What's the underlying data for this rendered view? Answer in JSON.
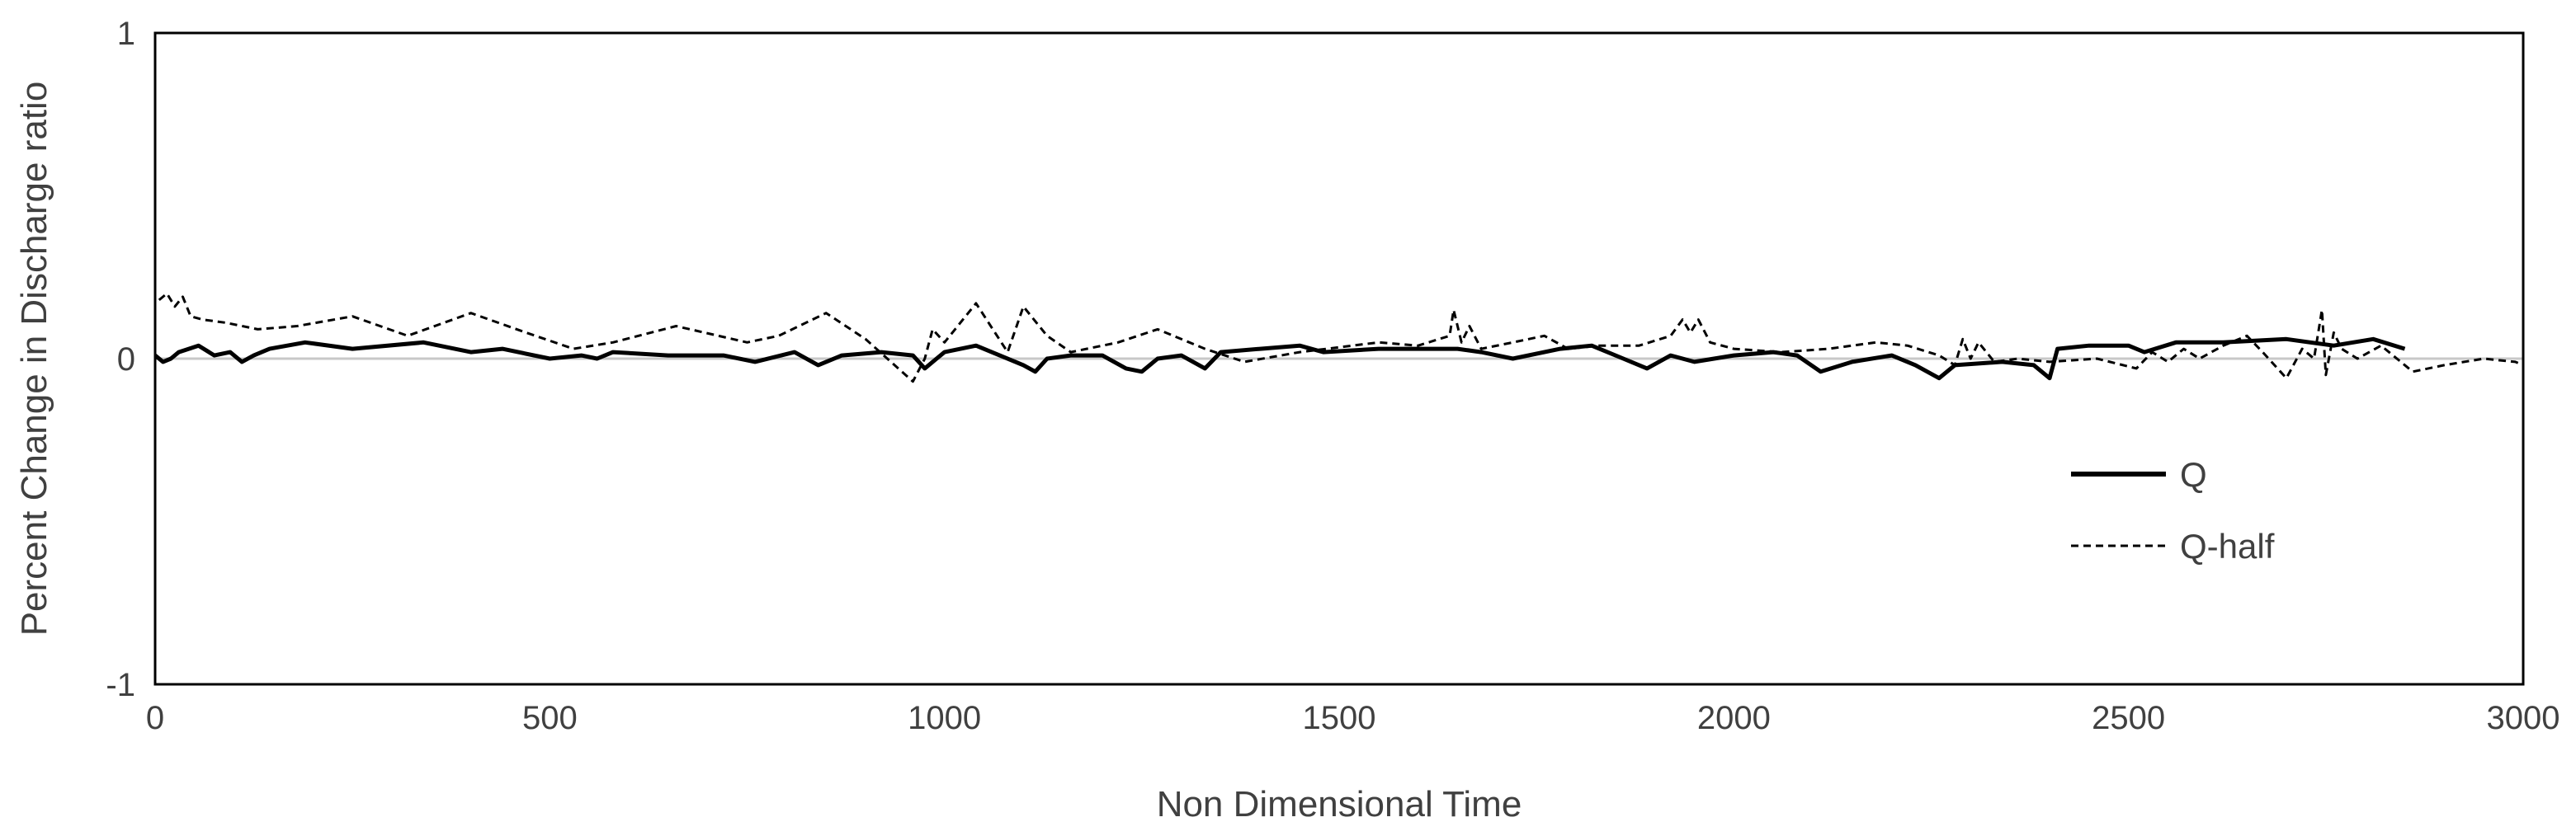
{
  "chart_data": {
    "type": "line",
    "title": "",
    "xlabel": "Non Dimensional Time",
    "ylabel": "Percent Change in Discharge ratio",
    "xlim": [
      0,
      3000
    ],
    "ylim": [
      -1,
      1
    ],
    "xticks": [
      0,
      500,
      1000,
      1500,
      2000,
      2500,
      3000
    ],
    "yticks": [
      -1,
      0,
      1
    ],
    "grid": false,
    "zero_line": true,
    "legend_position": "right",
    "series": [
      {
        "name": "Q",
        "style": "solid",
        "color": "#000000",
        "points": [
          [
            0,
            0.01
          ],
          [
            10,
            -0.01
          ],
          [
            20,
            0.0
          ],
          [
            30,
            0.02
          ],
          [
            55,
            0.04
          ],
          [
            75,
            0.01
          ],
          [
            95,
            0.02
          ],
          [
            110,
            -0.01
          ],
          [
            125,
            0.01
          ],
          [
            145,
            0.03
          ],
          [
            190,
            0.05
          ],
          [
            250,
            0.03
          ],
          [
            340,
            0.05
          ],
          [
            400,
            0.02
          ],
          [
            440,
            0.03
          ],
          [
            500,
            0.0
          ],
          [
            540,
            0.01
          ],
          [
            560,
            0.0
          ],
          [
            580,
            0.02
          ],
          [
            650,
            0.01
          ],
          [
            720,
            0.01
          ],
          [
            760,
            -0.01
          ],
          [
            810,
            0.02
          ],
          [
            840,
            -0.02
          ],
          [
            870,
            0.01
          ],
          [
            920,
            0.02
          ],
          [
            960,
            0.01
          ],
          [
            975,
            -0.03
          ],
          [
            990,
            0.0
          ],
          [
            1000,
            0.02
          ],
          [
            1040,
            0.04
          ],
          [
            1070,
            0.01
          ],
          [
            1100,
            -0.02
          ],
          [
            1115,
            -0.04
          ],
          [
            1130,
            0.0
          ],
          [
            1160,
            0.01
          ],
          [
            1200,
            0.01
          ],
          [
            1230,
            -0.03
          ],
          [
            1250,
            -0.04
          ],
          [
            1270,
            0.0
          ],
          [
            1300,
            0.01
          ],
          [
            1330,
            -0.03
          ],
          [
            1350,
            0.02
          ],
          [
            1400,
            0.03
          ],
          [
            1450,
            0.04
          ],
          [
            1480,
            0.02
          ],
          [
            1550,
            0.03
          ],
          [
            1650,
            0.03
          ],
          [
            1680,
            0.02
          ],
          [
            1720,
            0.0
          ],
          [
            1780,
            0.03
          ],
          [
            1820,
            0.04
          ],
          [
            1860,
            0.0
          ],
          [
            1890,
            -0.03
          ],
          [
            1920,
            0.01
          ],
          [
            1950,
            -0.01
          ],
          [
            2000,
            0.01
          ],
          [
            2050,
            0.02
          ],
          [
            2080,
            0.01
          ],
          [
            2110,
            -0.04
          ],
          [
            2150,
            -0.01
          ],
          [
            2200,
            0.01
          ],
          [
            2230,
            -0.02
          ],
          [
            2260,
            -0.06
          ],
          [
            2280,
            -0.02
          ],
          [
            2340,
            -0.01
          ],
          [
            2380,
            -0.02
          ],
          [
            2400,
            -0.06
          ],
          [
            2410,
            0.03
          ],
          [
            2450,
            0.04
          ],
          [
            2500,
            0.04
          ],
          [
            2520,
            0.02
          ],
          [
            2560,
            0.05
          ],
          [
            2620,
            0.05
          ],
          [
            2700,
            0.06
          ],
          [
            2760,
            0.04
          ],
          [
            2810,
            0.06
          ],
          [
            2850,
            0.03
          ]
        ]
      },
      {
        "name": "Q-half",
        "style": "dashed",
        "color": "#000000",
        "points": [
          [
            5,
            0.18
          ],
          [
            15,
            0.2
          ],
          [
            25,
            0.16
          ],
          [
            35,
            0.19
          ],
          [
            45,
            0.13
          ],
          [
            60,
            0.12
          ],
          [
            90,
            0.11
          ],
          [
            130,
            0.09
          ],
          [
            180,
            0.1
          ],
          [
            250,
            0.13
          ],
          [
            320,
            0.07
          ],
          [
            400,
            0.14
          ],
          [
            470,
            0.08
          ],
          [
            530,
            0.03
          ],
          [
            580,
            0.05
          ],
          [
            660,
            0.1
          ],
          [
            750,
            0.05
          ],
          [
            790,
            0.07
          ],
          [
            850,
            0.14
          ],
          [
            900,
            0.06
          ],
          [
            960,
            -0.07
          ],
          [
            975,
            0.0
          ],
          [
            985,
            0.09
          ],
          [
            1000,
            0.05
          ],
          [
            1040,
            0.17
          ],
          [
            1080,
            0.02
          ],
          [
            1100,
            0.16
          ],
          [
            1130,
            0.07
          ],
          [
            1160,
            0.02
          ],
          [
            1220,
            0.05
          ],
          [
            1270,
            0.09
          ],
          [
            1330,
            0.03
          ],
          [
            1380,
            -0.01
          ],
          [
            1450,
            0.02
          ],
          [
            1550,
            0.05
          ],
          [
            1600,
            0.04
          ],
          [
            1640,
            0.07
          ],
          [
            1645,
            0.15
          ],
          [
            1655,
            0.05
          ],
          [
            1665,
            0.1
          ],
          [
            1680,
            0.03
          ],
          [
            1720,
            0.05
          ],
          [
            1760,
            0.07
          ],
          [
            1790,
            0.03
          ],
          [
            1830,
            0.04
          ],
          [
            1880,
            0.04
          ],
          [
            1920,
            0.07
          ],
          [
            1935,
            0.12
          ],
          [
            1945,
            0.08
          ],
          [
            1955,
            0.12
          ],
          [
            1970,
            0.05
          ],
          [
            2000,
            0.03
          ],
          [
            2060,
            0.02
          ],
          [
            2120,
            0.03
          ],
          [
            2180,
            0.05
          ],
          [
            2220,
            0.04
          ],
          [
            2260,
            0.01
          ],
          [
            2280,
            -0.02
          ],
          [
            2290,
            0.06
          ],
          [
            2300,
            0.0
          ],
          [
            2310,
            0.05
          ],
          [
            2330,
            -0.01
          ],
          [
            2360,
            0.0
          ],
          [
            2400,
            -0.01
          ],
          [
            2460,
            0.0
          ],
          [
            2510,
            -0.03
          ],
          [
            2530,
            0.02
          ],
          [
            2550,
            -0.01
          ],
          [
            2570,
            0.03
          ],
          [
            2590,
            0.0
          ],
          [
            2620,
            0.04
          ],
          [
            2650,
            0.07
          ],
          [
            2670,
            0.02
          ],
          [
            2700,
            -0.06
          ],
          [
            2720,
            0.03
          ],
          [
            2735,
            0.0
          ],
          [
            2745,
            0.15
          ],
          [
            2750,
            -0.05
          ],
          [
            2760,
            0.08
          ],
          [
            2770,
            0.03
          ],
          [
            2790,
            0.0
          ],
          [
            2820,
            0.04
          ],
          [
            2860,
            -0.04
          ],
          [
            2900,
            -0.02
          ],
          [
            2950,
            0.0
          ],
          [
            2990,
            -0.01
          ],
          [
            3000,
            -0.02
          ]
        ]
      }
    ]
  }
}
